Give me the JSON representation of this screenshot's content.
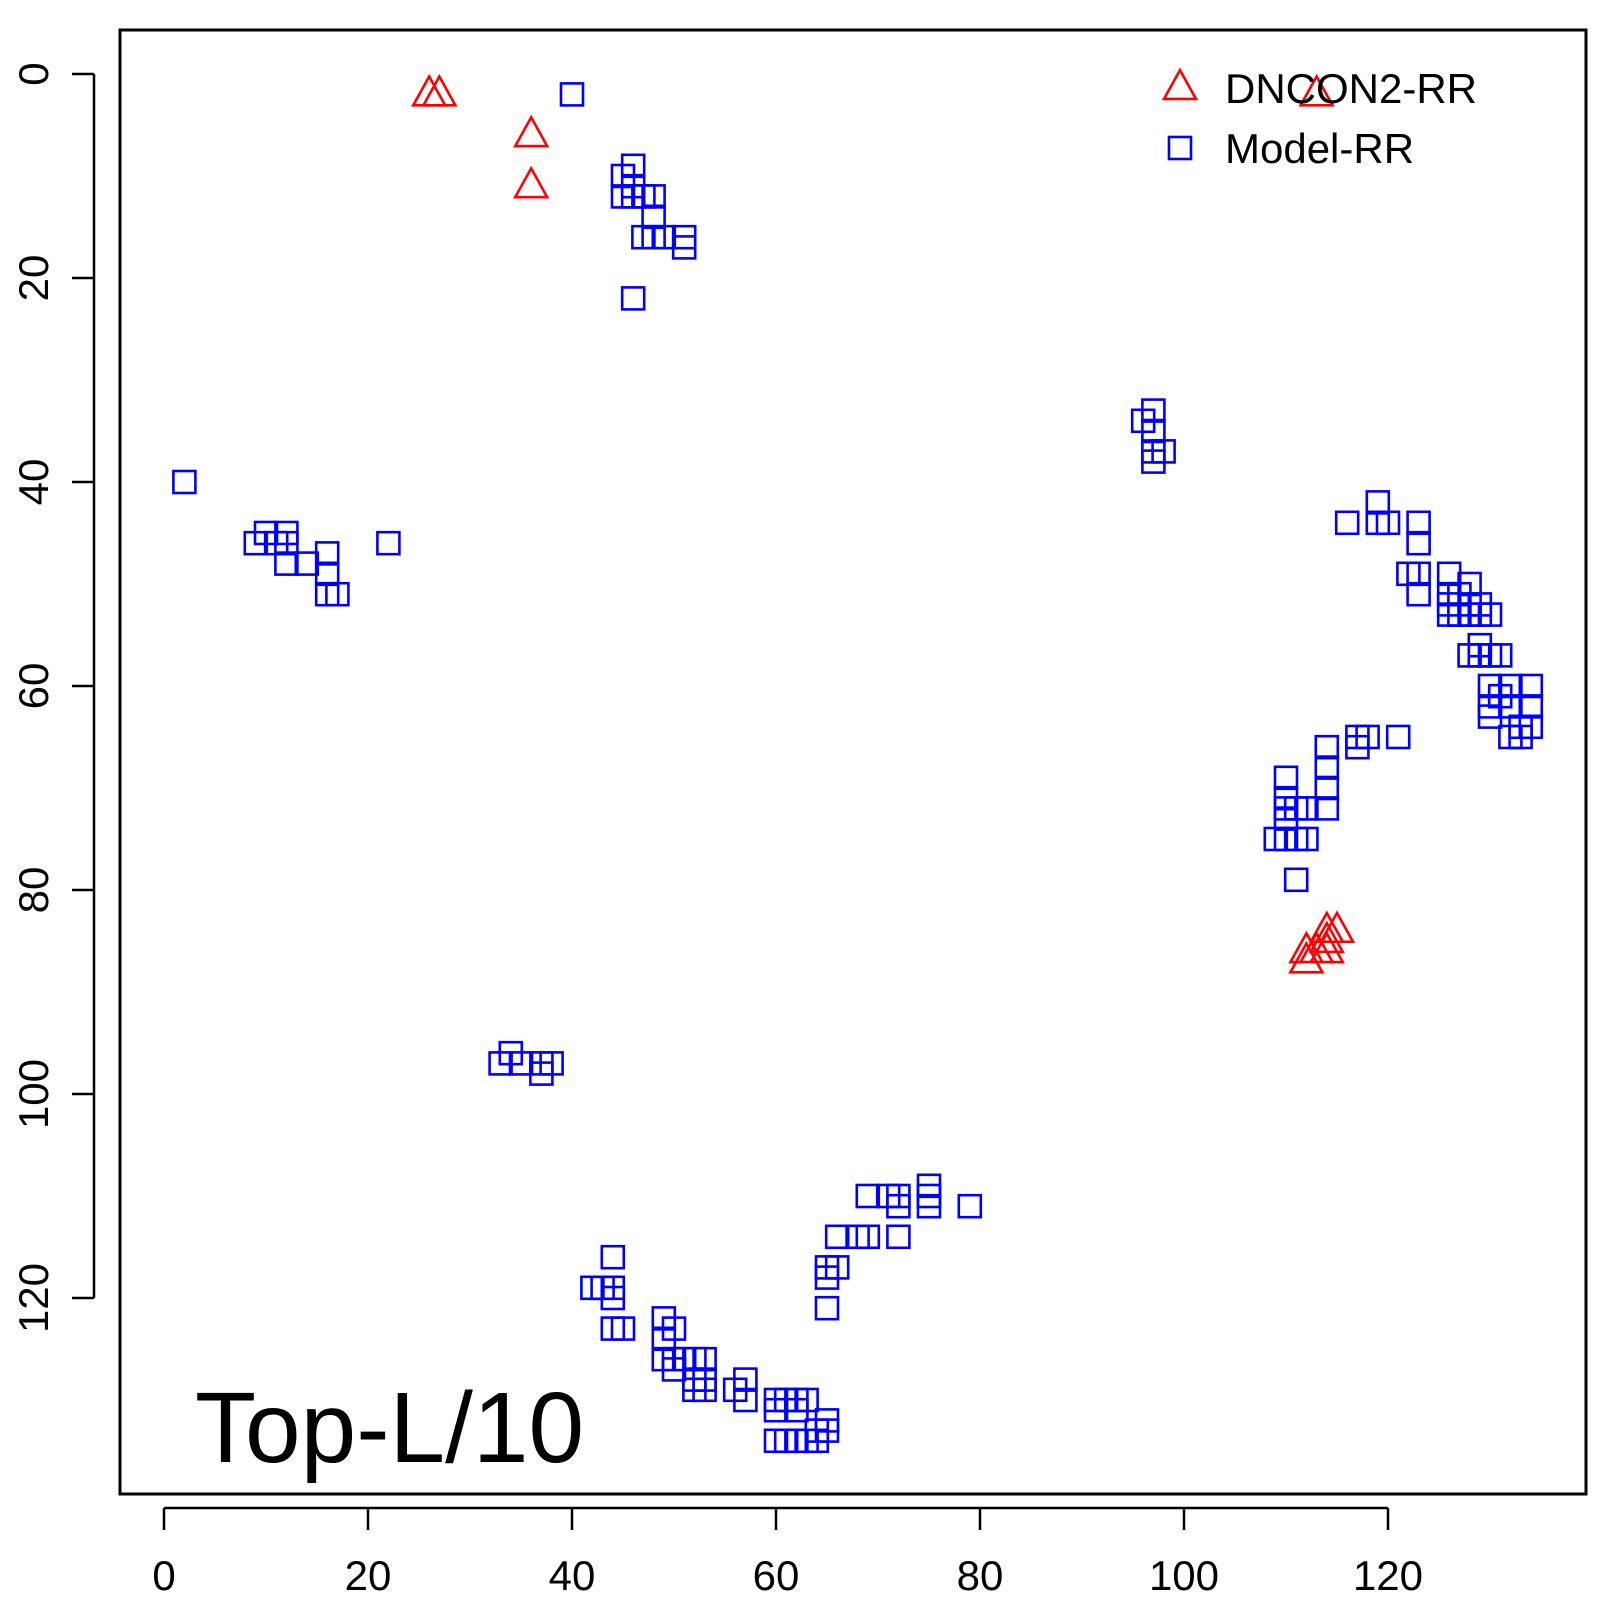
{
  "chart_data": {
    "type": "scatter",
    "title": "",
    "xlabel": "",
    "ylabel": "",
    "xlim": [
      -4,
      140
    ],
    "ylim": [
      139,
      -4
    ],
    "y_axis_inverted": true,
    "grid": false,
    "legend_position": "top-right",
    "annotation": "Top-L/10",
    "x_ticks": [
      0,
      20,
      40,
      60,
      80,
      100,
      120
    ],
    "y_ticks": [
      0,
      20,
      40,
      60,
      80,
      100,
      120
    ],
    "series": [
      {
        "name": "DNCON2-RR",
        "marker": "triangle",
        "color": "#ff0000",
        "points": [
          [
            26,
            2
          ],
          [
            27,
            2
          ],
          [
            36,
            6
          ],
          [
            36,
            11
          ],
          [
            113,
            2
          ],
          [
            112,
            86
          ],
          [
            112,
            87
          ],
          [
            113,
            86
          ],
          [
            114,
            85
          ],
          [
            114,
            86
          ],
          [
            114,
            84
          ],
          [
            115,
            84
          ]
        ]
      },
      {
        "name": "Model-RR",
        "marker": "square",
        "color": "#0000ff",
        "points": [
          [
            40,
            2
          ],
          [
            45,
            10
          ],
          [
            45,
            12
          ],
          [
            46,
            9
          ],
          [
            46,
            11
          ],
          [
            46,
            12
          ],
          [
            47,
            12
          ],
          [
            48,
            12
          ],
          [
            48,
            14
          ],
          [
            47,
            16
          ],
          [
            48,
            16
          ],
          [
            49,
            16
          ],
          [
            51,
            16
          ],
          [
            51,
            17
          ],
          [
            46,
            22
          ],
          [
            2,
            40
          ],
          [
            9,
            46
          ],
          [
            10,
            45
          ],
          [
            11,
            46
          ],
          [
            12,
            45
          ],
          [
            12,
            46
          ],
          [
            12,
            48
          ],
          [
            14,
            48
          ],
          [
            16,
            47
          ],
          [
            16,
            49
          ],
          [
            16,
            51
          ],
          [
            17,
            51
          ],
          [
            22,
            46
          ],
          [
            96,
            34
          ],
          [
            97,
            33
          ],
          [
            97,
            35
          ],
          [
            97,
            37
          ],
          [
            97,
            38
          ],
          [
            98,
            37
          ],
          [
            116,
            44
          ],
          [
            119,
            42
          ],
          [
            119,
            44
          ],
          [
            120,
            44
          ],
          [
            123,
            44
          ],
          [
            123,
            46
          ],
          [
            122,
            49
          ],
          [
            123,
            49
          ],
          [
            123,
            51
          ],
          [
            126,
            49
          ],
          [
            126,
            51
          ],
          [
            126,
            52
          ],
          [
            126,
            53
          ],
          [
            127,
            51
          ],
          [
            127,
            53
          ],
          [
            128,
            50
          ],
          [
            128,
            52
          ],
          [
            128,
            53
          ],
          [
            129,
            52
          ],
          [
            129,
            53
          ],
          [
            130,
            53
          ],
          [
            128,
            57
          ],
          [
            129,
            56
          ],
          [
            129,
            57
          ],
          [
            130,
            57
          ],
          [
            131,
            57
          ],
          [
            130,
            60
          ],
          [
            130,
            62
          ],
          [
            130,
            63
          ],
          [
            131,
            61
          ],
          [
            132,
            60
          ],
          [
            132,
            62
          ],
          [
            132,
            65
          ],
          [
            133,
            64
          ],
          [
            133,
            65
          ],
          [
            134,
            60
          ],
          [
            134,
            62
          ],
          [
            134,
            64
          ],
          [
            117,
            65
          ],
          [
            117,
            66
          ],
          [
            118,
            65
          ],
          [
            121,
            65
          ],
          [
            114,
            66
          ],
          [
            114,
            68
          ],
          [
            114,
            70
          ],
          [
            114,
            72
          ],
          [
            110,
            69
          ],
          [
            110,
            71
          ],
          [
            110,
            72
          ],
          [
            110,
            73
          ],
          [
            111,
            72
          ],
          [
            112,
            72
          ],
          [
            109,
            75
          ],
          [
            110,
            75
          ],
          [
            111,
            75
          ],
          [
            112,
            75
          ],
          [
            111,
            79
          ],
          [
            33,
            97
          ],
          [
            34,
            96
          ],
          [
            35,
            97
          ],
          [
            37,
            97
          ],
          [
            37,
            98
          ],
          [
            38,
            97
          ],
          [
            42,
            119
          ],
          [
            43,
            119
          ],
          [
            44,
            116
          ],
          [
            44,
            119
          ],
          [
            44,
            120
          ],
          [
            44,
            123
          ],
          [
            45,
            123
          ],
          [
            49,
            122
          ],
          [
            49,
            124
          ],
          [
            50,
            123
          ],
          [
            49,
            126
          ],
          [
            50,
            126
          ],
          [
            50,
            127
          ],
          [
            51,
            126
          ],
          [
            52,
            126
          ],
          [
            52,
            128
          ],
          [
            52,
            129
          ],
          [
            53,
            126
          ],
          [
            53,
            128
          ],
          [
            53,
            129
          ],
          [
            56,
            129
          ],
          [
            57,
            128
          ],
          [
            57,
            130
          ],
          [
            60,
            130
          ],
          [
            60,
            131
          ],
          [
            60,
            134
          ],
          [
            61,
            130
          ],
          [
            61,
            134
          ],
          [
            62,
            130
          ],
          [
            62,
            131
          ],
          [
            62,
            134
          ],
          [
            63,
            130
          ],
          [
            63,
            134
          ],
          [
            64,
            134
          ],
          [
            64,
            133
          ],
          [
            65,
            132
          ],
          [
            65,
            133
          ],
          [
            65,
            117
          ],
          [
            65,
            118
          ],
          [
            65,
            121
          ],
          [
            66,
            114
          ],
          [
            66,
            117
          ],
          [
            68,
            114
          ],
          [
            69,
            110
          ],
          [
            69,
            114
          ],
          [
            71,
            110
          ],
          [
            72,
            110
          ],
          [
            72,
            111
          ],
          [
            72,
            114
          ],
          [
            75,
            109
          ],
          [
            75,
            110
          ],
          [
            75,
            111
          ],
          [
            79,
            111
          ]
        ]
      }
    ]
  }
}
